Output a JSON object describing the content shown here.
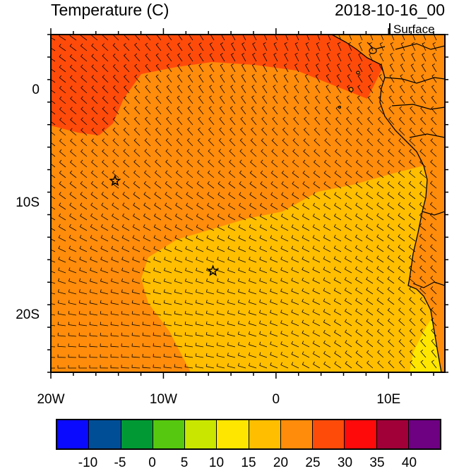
{
  "header": {
    "title": "Temperature (C)",
    "datetime": "2018-10-16_00",
    "level": "Surface"
  },
  "axes": {
    "lon_ticks": [
      {
        "label": "20W",
        "lon": -20
      },
      {
        "label": "10W",
        "lon": -10
      },
      {
        "label": "0",
        "lon": 0
      },
      {
        "label": "10E",
        "lon": 10
      }
    ],
    "lat_ticks": [
      {
        "label": "0",
        "lat": 0
      },
      {
        "label": "10S",
        "lat": -10
      },
      {
        "label": "20S",
        "lat": -20
      }
    ],
    "lon_range": [
      -20,
      15
    ],
    "lat_range": [
      -25,
      5
    ]
  },
  "map": {
    "field": "surface temperature with wind barbs",
    "markers": [
      {
        "type": "star",
        "lon": -14.3,
        "lat": -8.0
      },
      {
        "type": "star",
        "lon": -5.6,
        "lat": -16.0
      }
    ]
  },
  "colorbar": {
    "colors": [
      "#0a0aff",
      "#004e96",
      "#009933",
      "#55c80f",
      "#c8e600",
      "#ffe600",
      "#ffbe00",
      "#ff8c0a",
      "#ff4b0a",
      "#ff0a0a",
      "#a00037",
      "#6e0082"
    ],
    "labels": [
      "-10",
      "-5",
      "0",
      "5",
      "10",
      "15",
      "20",
      "25",
      "30",
      "35",
      "40"
    ]
  }
}
